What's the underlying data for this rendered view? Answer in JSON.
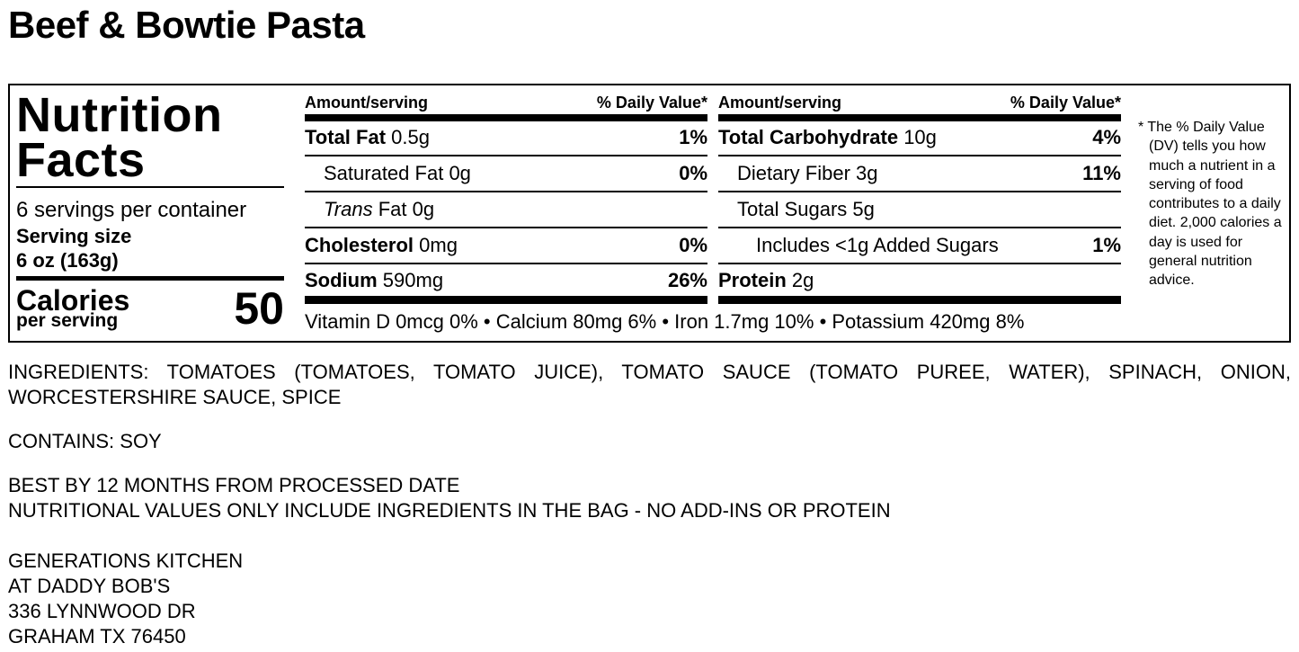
{
  "title": "Beef & Bowtie Pasta",
  "label": {
    "heading_line1": "Nutrition",
    "heading_line2": "Facts",
    "servings": "6 servings per container",
    "serving_size_label": "Serving size",
    "serving_size": "6 oz (163g)",
    "calories_label": "Calories",
    "per_serving": "per serving",
    "calories": 50,
    "columns": [
      {
        "header_amount": "Amount/serving",
        "header_dv": "% Daily Value*",
        "rows": [
          {
            "name": "Total Fat",
            "amount": "0.5g",
            "dv": "1%"
          },
          {
            "name": "Saturated Fat",
            "amount": "0g",
            "dv": "0%"
          },
          {
            "name_italic": "Trans",
            "name": "Fat",
            "amount": "0g"
          },
          {
            "name": "Cholesterol",
            "amount": "0mg",
            "dv": "0%"
          },
          {
            "name": "Sodium",
            "amount": "590mg",
            "dv": "26%"
          }
        ]
      },
      {
        "header_amount": "Amount/serving",
        "header_dv": "% Daily Value*",
        "rows": [
          {
            "name": "Total Carbohydrate",
            "amount": "10g",
            "dv": "4%"
          },
          {
            "name": "Dietary Fiber",
            "amount": "3g",
            "dv": "11%"
          },
          {
            "name": "Total Sugars",
            "amount": "5g"
          },
          {
            "name": "Includes <1g Added Sugars",
            "dv": "1%"
          },
          {
            "name": "Protein",
            "amount": "2g"
          }
        ]
      }
    ],
    "vitamins": "Vitamin D 0mcg 0% • Calcium 80mg 6% • Iron 1.7mg 10% • Potassium 420mg 8%",
    "footnote": "* The % Daily Value (DV) tells you how much a nutrient in a serving of food contributes to a daily diet. 2,000 calories a day is used for general nutrition advice."
  },
  "ingredients": "INGREDIENTS: TOMATOES (TOMATOES, TOMATO JUICE), TOMATO SAUCE (TOMATO PUREE, WATER), SPINACH, ONION, WORCESTERSHIRE SAUCE, SPICE",
  "contains": "CONTAINS: SOY",
  "notes": [
    "BEST BY 12 MONTHS FROM PROCESSED DATE",
    "NUTRITIONAL VALUES ONLY INCLUDE INGREDIENTS IN THE BAG - NO ADD-INS OR PROTEIN"
  ],
  "address": [
    "GENERATIONS KITCHEN",
    "AT DADDY BOB'S",
    "336 LYNNWOOD DR",
    "GRAHAM TX 76450"
  ]
}
